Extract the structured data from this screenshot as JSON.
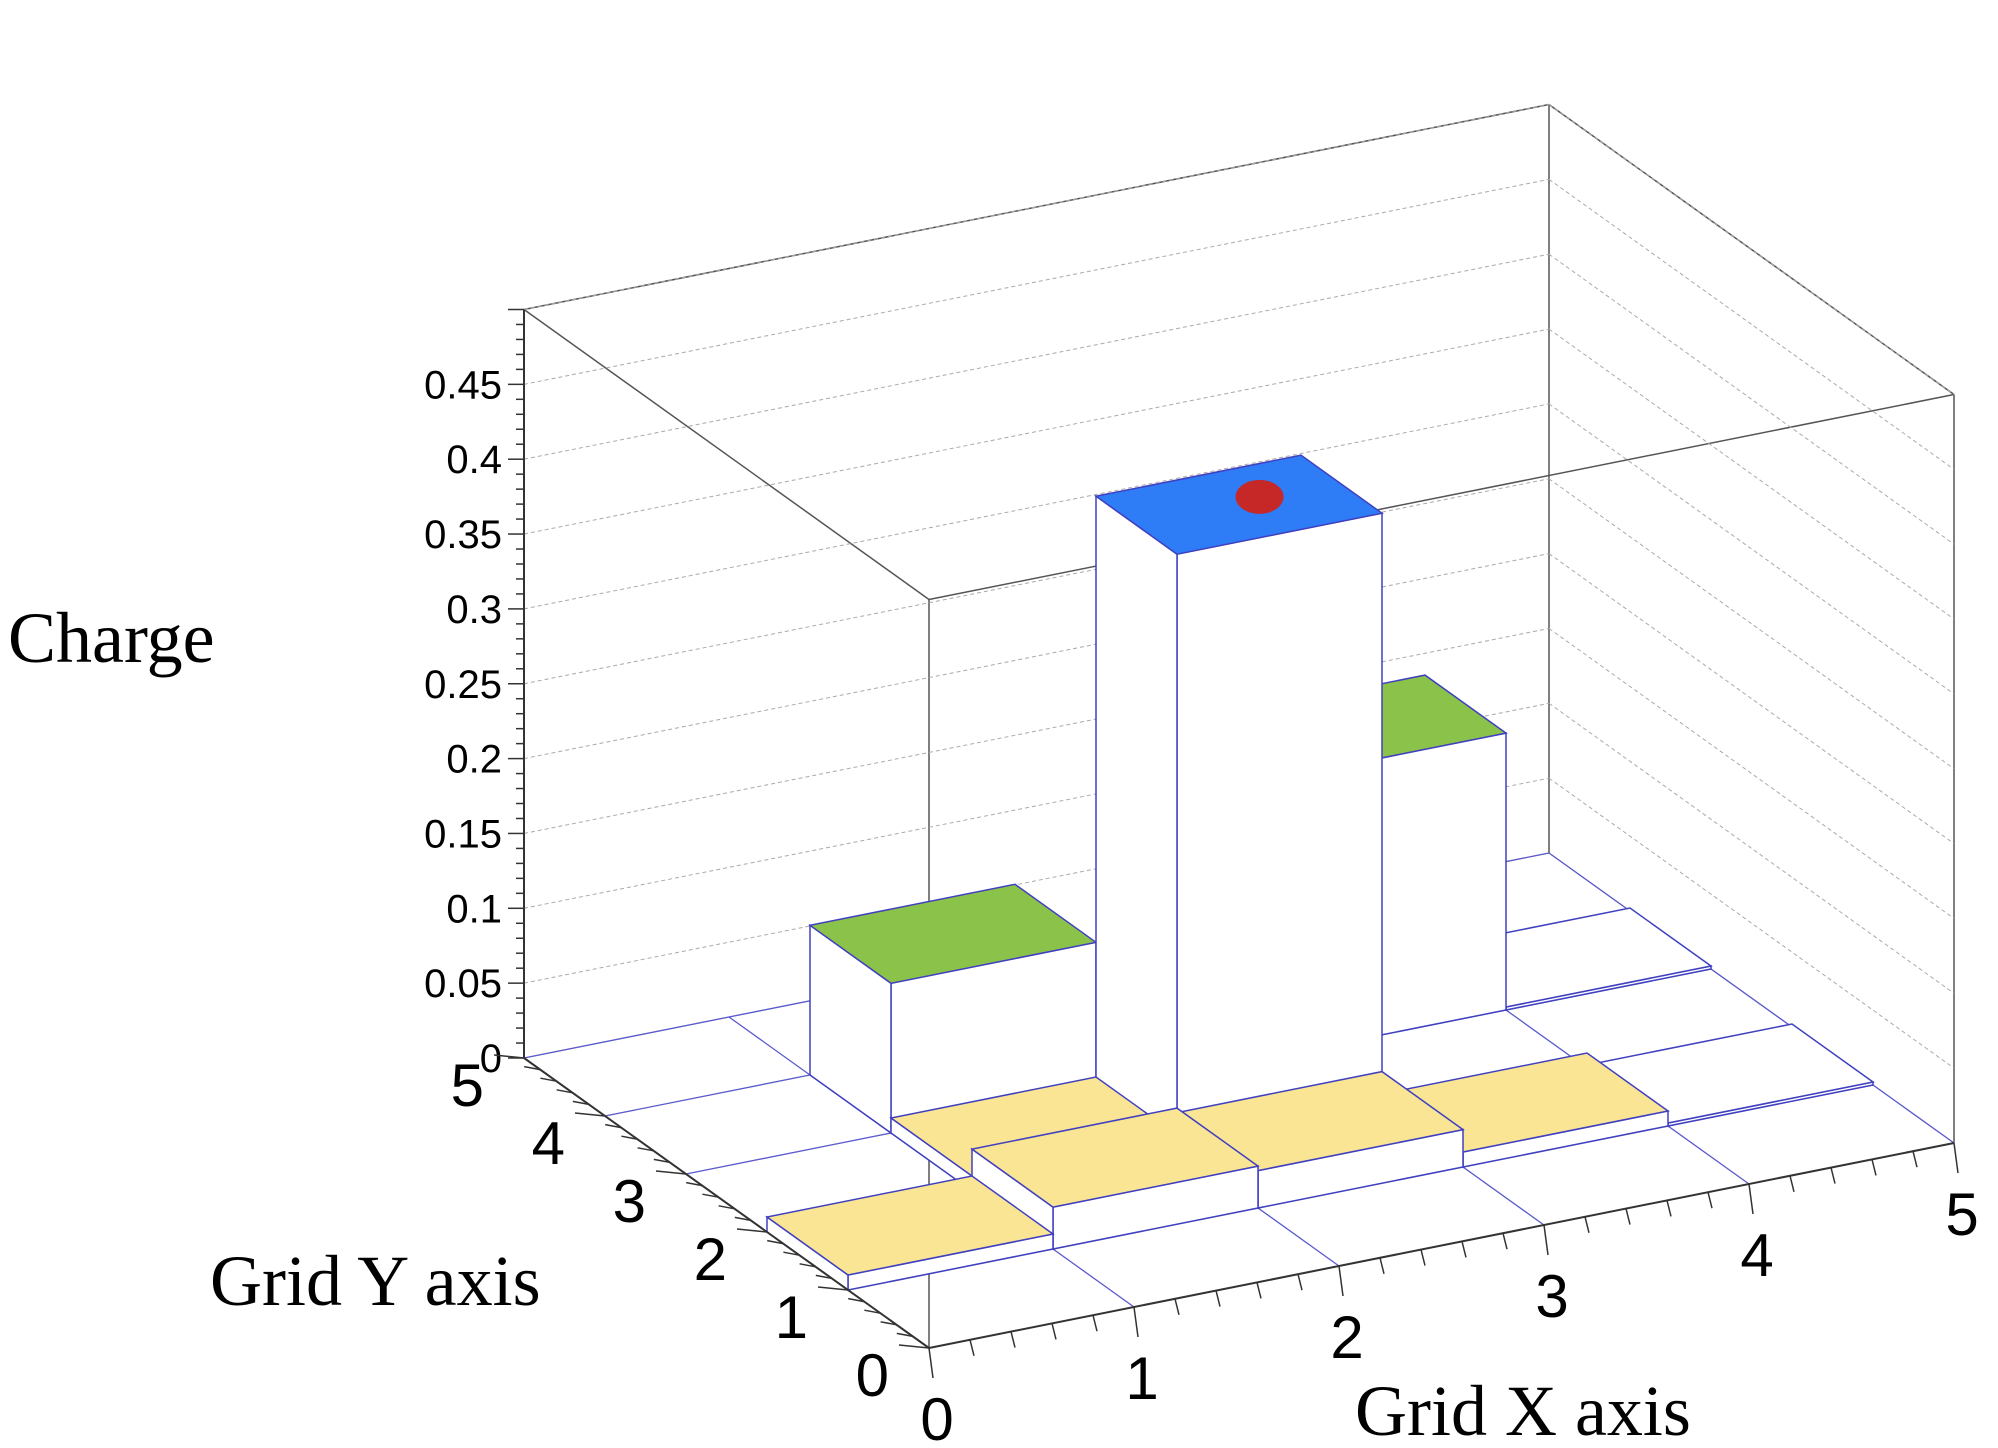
{
  "chart_data": {
    "type": "lego3d",
    "zlabel": "Charge",
    "xlabel": "Grid X axis",
    "ylabel": "Grid Y axis",
    "xlim": [
      0,
      5
    ],
    "ylim": [
      0,
      5
    ],
    "zlim": [
      0,
      0.5
    ],
    "x_ticks": [
      "0",
      "1",
      "2",
      "3",
      "4",
      "5"
    ],
    "y_ticks": [
      "0",
      "1",
      "2",
      "3",
      "4",
      "5"
    ],
    "z_ticks": [
      "0",
      "0.05",
      "0.1",
      "0.15",
      "0.2",
      "0.25",
      "0.3",
      "0.35",
      "0.4",
      "0.45"
    ],
    "bins": [
      {
        "x": 0,
        "y": 1,
        "z": 0.01,
        "color": "#f9e594"
      },
      {
        "x": 1,
        "y": 1,
        "z": 0.028,
        "color": "#f9e594"
      },
      {
        "x": 1,
        "y": 2,
        "z": 0.01,
        "color": "#f9e594"
      },
      {
        "x": 1,
        "y": 3,
        "z": 0.1,
        "color": "#8bc34a"
      },
      {
        "x": 2,
        "y": 2,
        "z": 0.398,
        "color": "#2e7cf6"
      },
      {
        "x": 3,
        "y": 3,
        "z": 0.185,
        "color": "#8bc34a"
      },
      {
        "x": 2,
        "y": 1,
        "z": 0.025,
        "color": "#f9e594"
      },
      {
        "x": 3,
        "y": 1,
        "z": 0.01,
        "color": "#f9e594"
      },
      {
        "x": 4,
        "y": 1,
        "z": 0.002,
        "color": "#ffffff"
      },
      {
        "x": 4,
        "y": 3,
        "z": 0.002,
        "color": "#ffffff"
      }
    ],
    "marker": {
      "x": 2.62,
      "y": 2.55,
      "z": 0.398,
      "color": "#c62828"
    },
    "grid": true
  }
}
